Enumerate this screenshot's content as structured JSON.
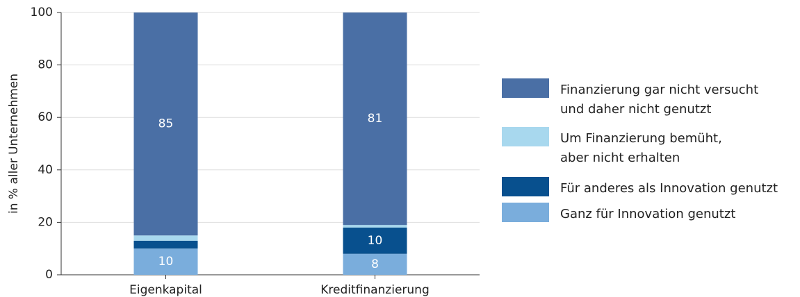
{
  "chart_data": {
    "type": "stacked_bar",
    "y_label": "in % aller Unternehmen",
    "categories": [
      "Eigenkapital",
      "Kreditfinanzierung"
    ],
    "series": [
      {
        "name": "Ganz für Innovation genutzt",
        "color": "#7aaddc",
        "values": [
          10,
          8
        ]
      },
      {
        "name": "Für anderes als Innovation genutzt",
        "color": "#08508e",
        "values": [
          3,
          10
        ]
      },
      {
        "name": "Um Finanzierung bemüht,\naber nicht erhalten",
        "color": "#a8d8ee",
        "values": [
          2,
          1
        ]
      },
      {
        "name": "Finanzierung gar nicht versucht\nund daher nicht genutzt",
        "color": "#4a6fa5",
        "values": [
          85,
          81
        ]
      }
    ],
    "ylim": [
      0,
      100
    ],
    "yticks": [
      0,
      20,
      40,
      60,
      80,
      100
    ],
    "grid": true
  }
}
